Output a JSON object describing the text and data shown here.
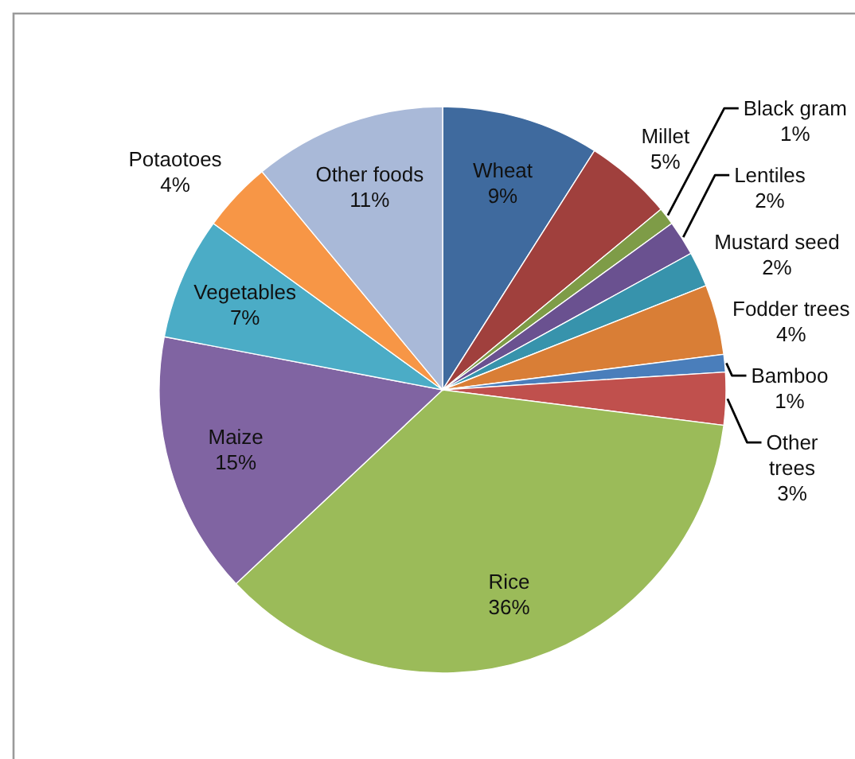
{
  "chart_data": {
    "type": "pie",
    "categories": [
      "Wheat",
      "Millet",
      "Black gram",
      "Lentiles",
      "Mustard seed",
      "Fodder trees",
      "Bamboo",
      "Other trees",
      "Rice",
      "Maize",
      "Vegetables",
      "Potaotoes",
      "Other foods"
    ],
    "values": [
      9,
      5,
      1,
      2,
      2,
      4,
      1,
      3,
      36,
      15,
      7,
      4,
      11
    ],
    "value_labels": [
      "9%",
      "5%",
      "1%",
      "2%",
      "2%",
      "4%",
      "1%",
      "3%",
      "36%",
      "15%",
      "7%",
      "4%",
      "11%"
    ],
    "colors": [
      "#3f6a9e",
      "#a0403d",
      "#7e9c47",
      "#6a5190",
      "#3793ac",
      "#d97e36",
      "#4a7ebb",
      "#c0504d",
      "#9bbb59",
      "#8064a2",
      "#4bacc6",
      "#f79646",
      "#a9b9d8"
    ]
  }
}
